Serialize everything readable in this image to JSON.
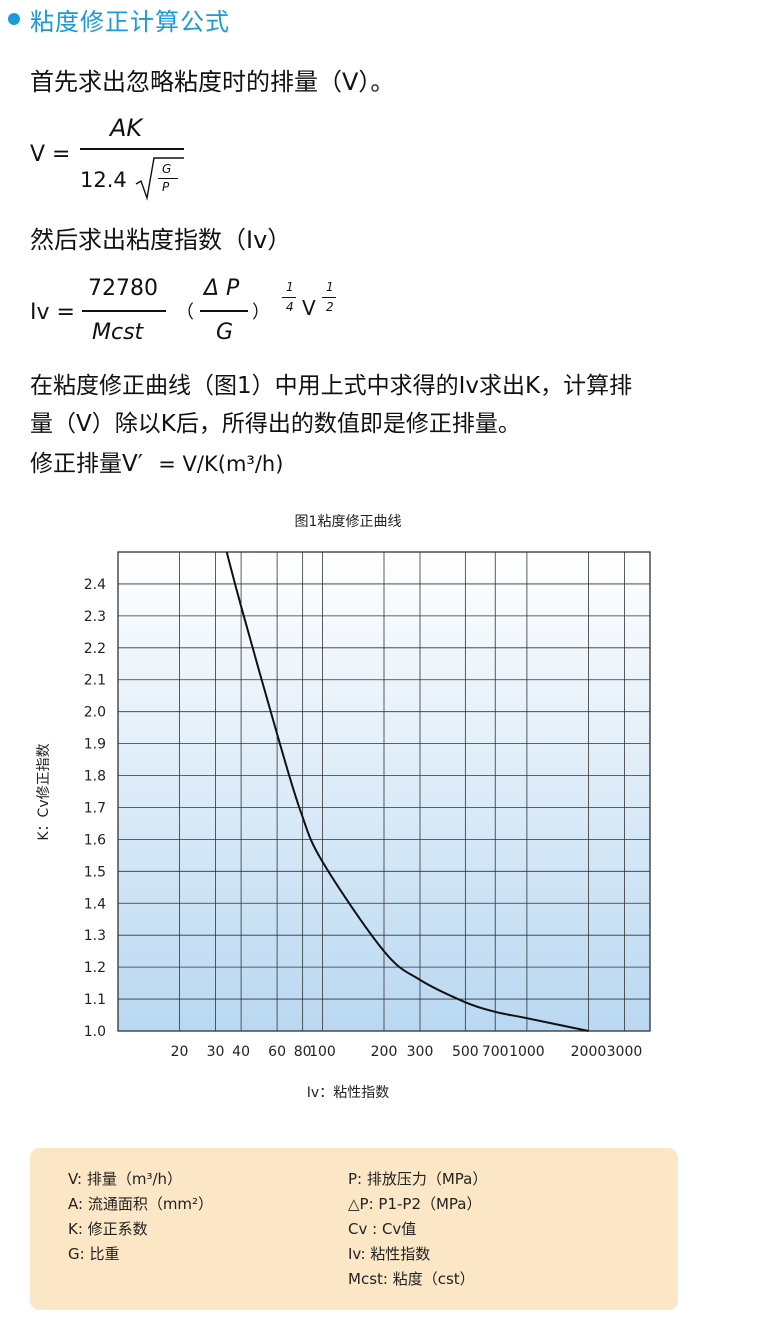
{
  "heading": {
    "text": "粘度修正计算公式",
    "color": "#1a9ad6"
  },
  "intro": "首先求出忽略粘度时的排量（V）。",
  "formula1": {
    "lhs": "V =",
    "numerator": "AK",
    "coef": "12.4",
    "root_num": "G",
    "root_den": "P"
  },
  "step2": "然后求出粘度指数（Iv）",
  "formula2": {
    "lhs": "Iv =",
    "numerator": "72780",
    "denominator": "Mcst",
    "paren_open": "（",
    "paren_num": "Δ P",
    "paren_den": "G",
    "paren_close": "）",
    "exp1_num": "1",
    "exp1_den": "4",
    "v": "V",
    "exp2_num": "1",
    "exp2_den": "2"
  },
  "explain_line1": "在粘度修正曲线（图1）中用上式中求得的Iv求出K，计算排",
  "explain_line2": "量（V）除以K后，所得出的数值即是修正排量。",
  "corrected": {
    "prefix": "修正排量V′ ",
    "formula": "= V/K(m³/h)"
  },
  "chart_data": {
    "type": "line",
    "title": "图1粘度修正曲线",
    "xlabel": "Iv：粘性指数",
    "ylabel": "K：Cv修正指数",
    "x_scale": "log",
    "xlim": [
      10,
      4000
    ],
    "ylim": [
      1.0,
      2.5
    ],
    "x_ticks": [
      "20",
      "30",
      "40",
      "60",
      "80",
      "100",
      "200",
      "300",
      "500",
      "700",
      "1000",
      "2000",
      "3000"
    ],
    "y_ticks": [
      "1.0",
      "1.1",
      "1.2",
      "1.3",
      "1.4",
      "1.5",
      "1.6",
      "1.7",
      "1.8",
      "1.9",
      "2.0",
      "2.1",
      "2.2",
      "2.3",
      "2.4"
    ],
    "grid": true,
    "series": [
      {
        "x": [
          34,
          40,
          60,
          78,
          100,
          200,
          300,
          500,
          700,
          1000,
          2000
        ],
        "y": [
          2.5,
          2.33,
          1.93,
          1.69,
          1.53,
          1.25,
          1.16,
          1.09,
          1.06,
          1.04,
          1.0
        ]
      }
    ],
    "colors": {
      "fill_top": "#ffffff",
      "fill_bottom": "#b9d8f1",
      "line": "#111111",
      "grid": "#333333"
    }
  },
  "notes": {
    "left": [
      "V: 排量（m³/h）",
      "A: 流通面积（mm²）",
      "K: 修正系数",
      "G: 比重"
    ],
    "right": [
      "P: 排放压力（MPa）",
      "△P: P1-P2（MPa）",
      "Cv : Cv值",
      "Iv: 粘性指数",
      "Mcst: 粘度（cst）"
    ],
    "background": "#fbe6c6"
  }
}
